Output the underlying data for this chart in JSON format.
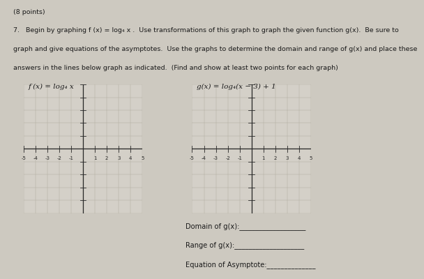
{
  "bg_color": "#cdc9c0",
  "paper_color": "#d4d0c8",
  "text_color": "#1a1a1a",
  "grid_color": "#b0aca0",
  "axis_color": "#2a2a2a",
  "tick_label_color": "#2a2a2a",
  "line1": "(8 points)",
  "line2": "7.   Begin by graphing f (x) = log₄ x .  Use transformations of this graph to graph the given function g(x).  Be sure to",
  "line3": "graph and give equations of the asymptotes.  Use the graphs to determine the domain and range of g(x) and place these",
  "line4": "answers in the lines below graph as indicated.  (Find and show at least two points for each graph)",
  "label_f": "f (x) = log₄ x",
  "label_g": "g(x) = log₄(x − 3) + 1",
  "domain_text": "Domain of g(x):___________________",
  "range_text": "Range of g(x):____________________",
  "asymptote_text": "Equation of Asymptote:______________",
  "axis_range": [
    -5,
    5
  ],
  "fontsize_body": 6.8,
  "fontsize_graph_label": 7.5,
  "fontsize_tick": 5.0
}
